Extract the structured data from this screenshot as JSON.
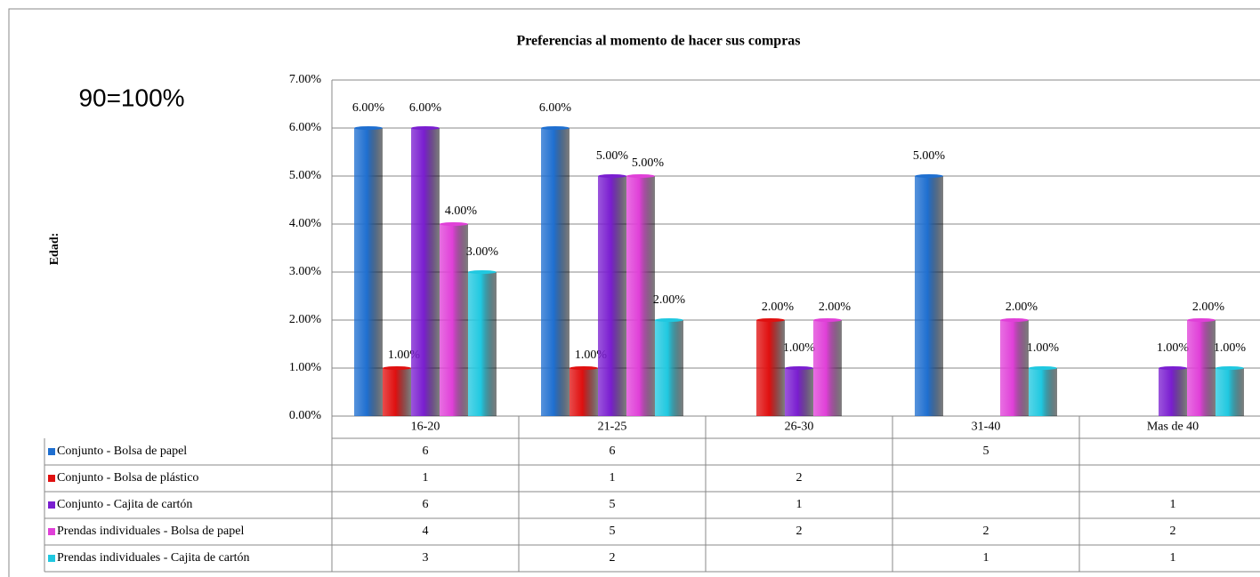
{
  "chart_data": {
    "type": "bar",
    "title": "Preferencias al momento de hacer sus compras",
    "annotation": "90=100%",
    "ylabel": "Edad:",
    "categories": [
      "16-20",
      "21-25",
      "26-30",
      "31-40",
      "Mas de 40"
    ],
    "ylim": [
      0,
      7
    ],
    "yticks": [
      {
        "value": 0,
        "label": "0.00%"
      },
      {
        "value": 1,
        "label": "1.00%"
      },
      {
        "value": 2,
        "label": "2.00%"
      },
      {
        "value": 3,
        "label": "3.00%"
      },
      {
        "value": 4,
        "label": "4.00%"
      },
      {
        "value": 5,
        "label": "5.00%"
      },
      {
        "value": 6,
        "label": "6.00%"
      },
      {
        "value": 7,
        "label": "7.00%"
      }
    ],
    "grid": true,
    "series": [
      {
        "name": "Conjunto - Bolsa de papel",
        "color": "#1f6fd0",
        "values": [
          6,
          6,
          null,
          5,
          null
        ],
        "value_labels": [
          "6.00%",
          "6.00%",
          null,
          "5.00%",
          null
        ]
      },
      {
        "name": "Conjunto - Bolsa de plástico",
        "color": "#e01010",
        "values": [
          1,
          1,
          2,
          null,
          null
        ],
        "value_labels": [
          "1.00%",
          "1.00%",
          "2.00%",
          null,
          null
        ]
      },
      {
        "name": "Conjunto - Cajita de cartón",
        "color": "#7a1ed0",
        "values": [
          6,
          5,
          1,
          null,
          1
        ],
        "value_labels": [
          "6.00%",
          "5.00%",
          "1.00%",
          null,
          "1.00%"
        ]
      },
      {
        "name": "Prendas individuales - Bolsa de papel",
        "color": "#e040d8",
        "values": [
          4,
          5,
          2,
          2,
          2
        ],
        "value_labels": [
          "4.00%",
          "5.00%",
          "2.00%",
          "2.00%",
          "2.00%"
        ]
      },
      {
        "name": "Prendas individuales - Cajita de cartón",
        "color": "#20c8e0",
        "values": [
          3,
          2,
          null,
          1,
          1
        ],
        "value_labels": [
          "3.00%",
          "2.00%",
          null,
          "1.00%",
          "1.00%"
        ]
      }
    ]
  }
}
